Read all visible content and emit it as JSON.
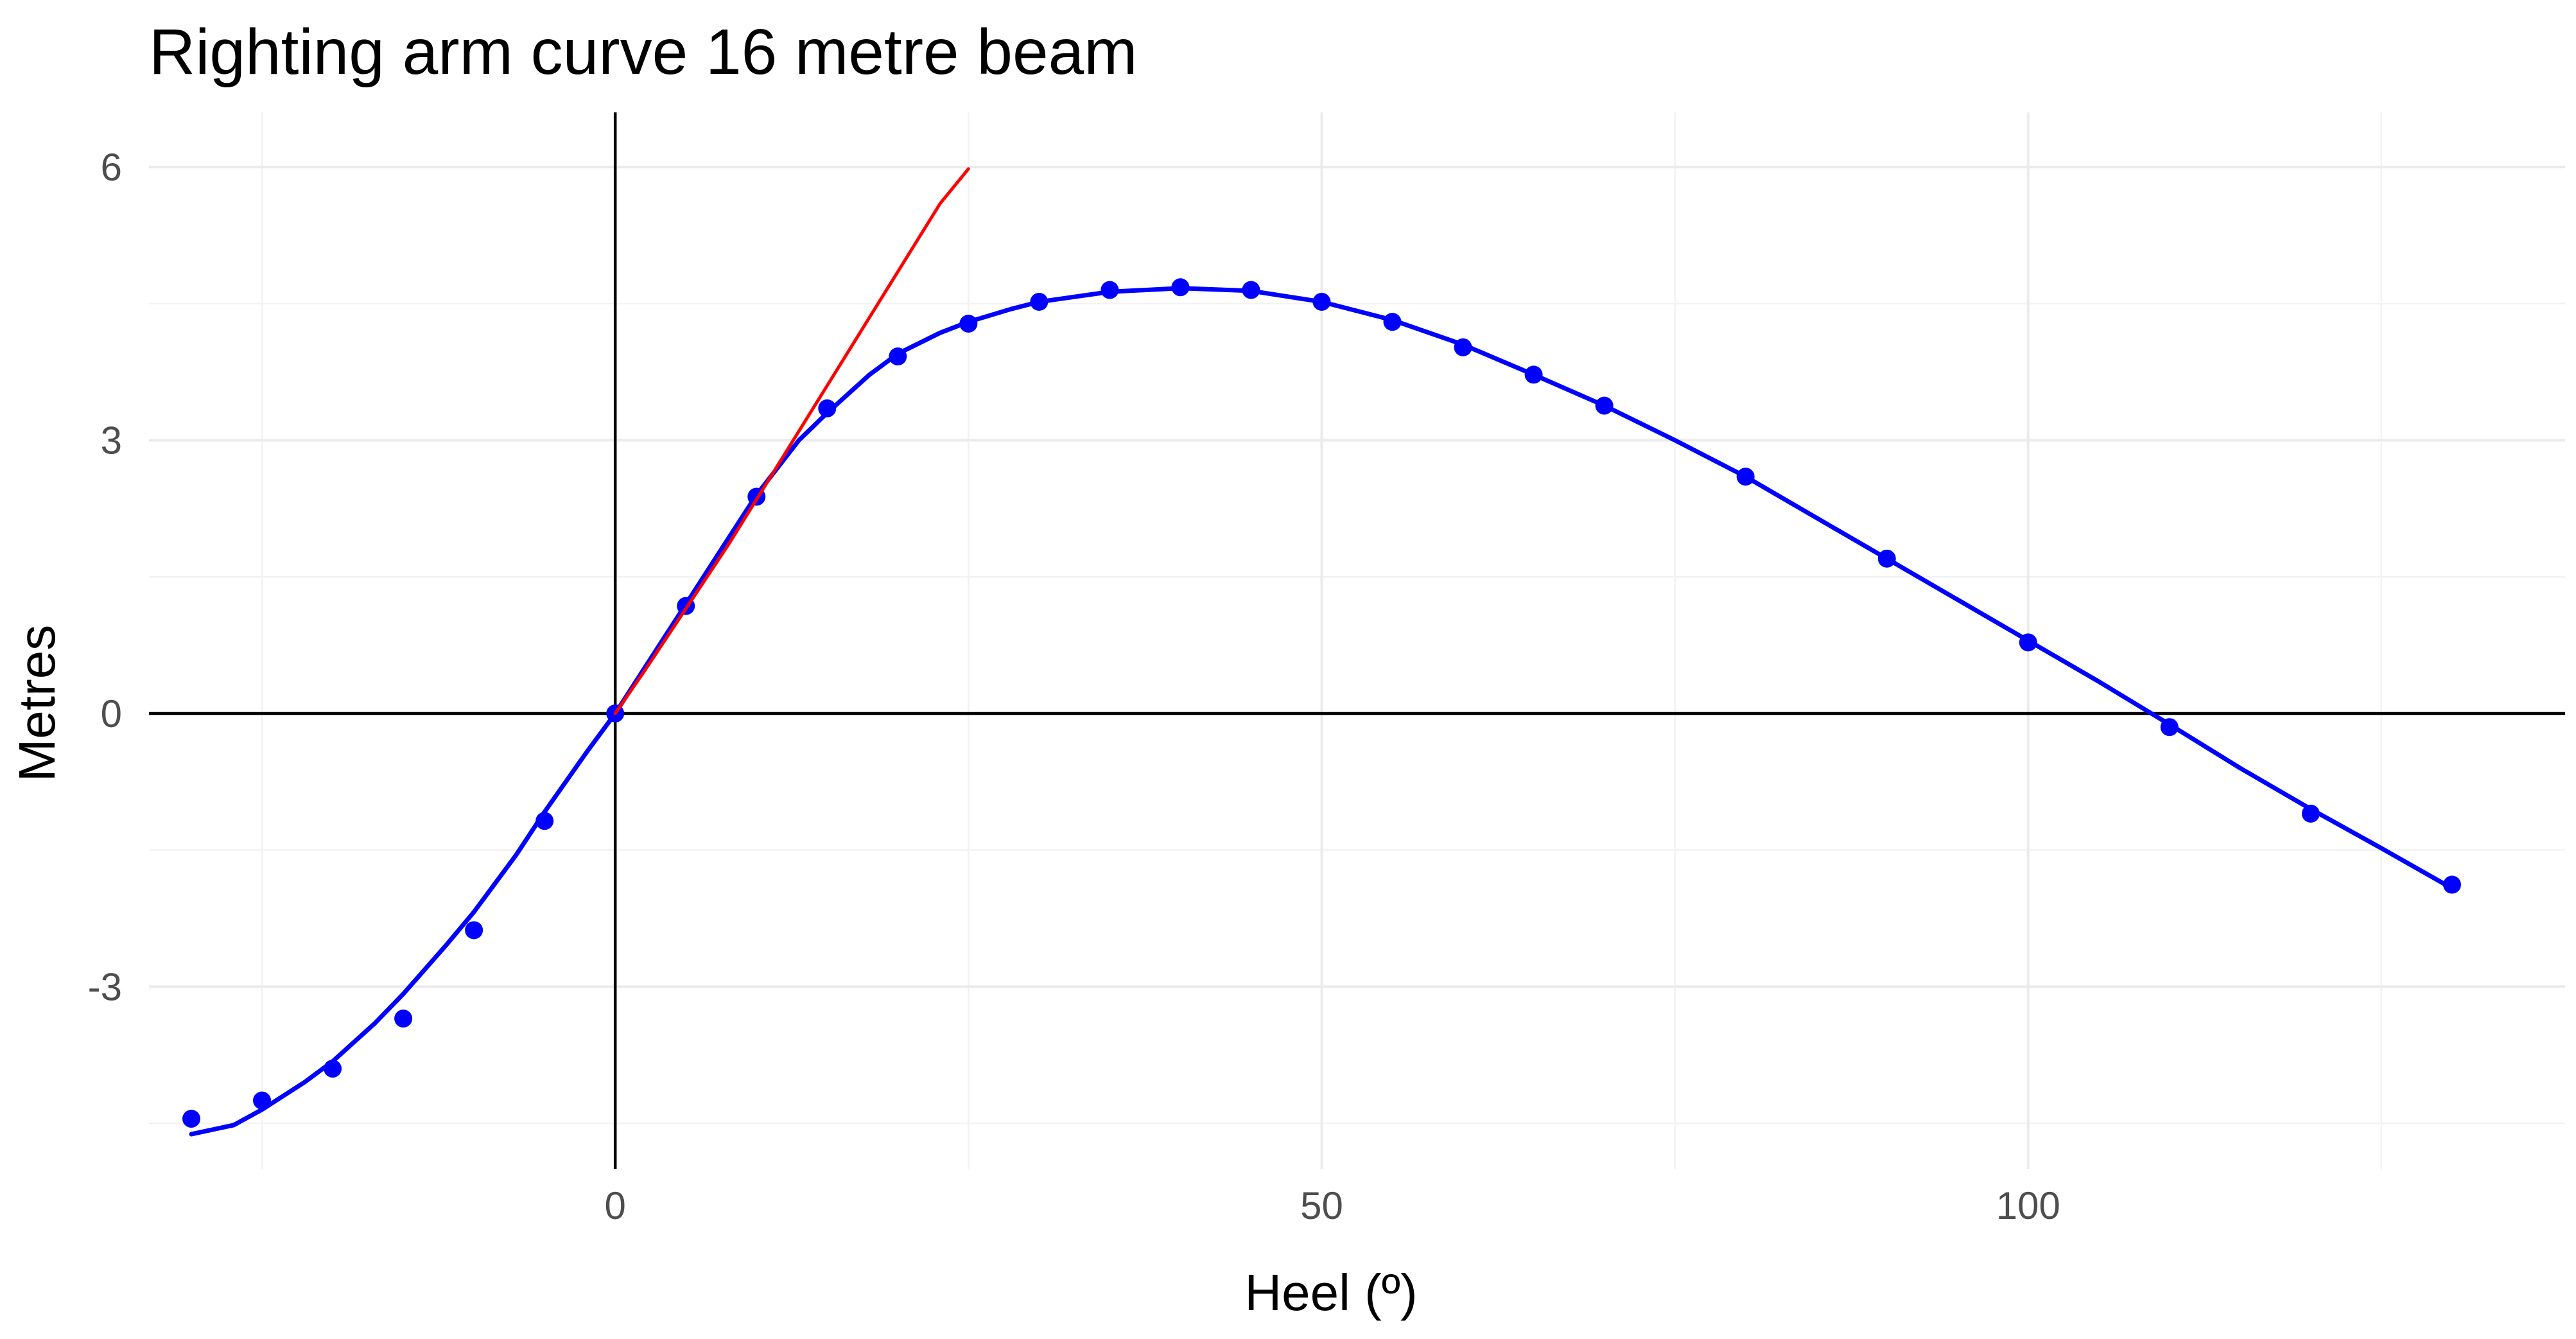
{
  "chart_data": {
    "type": "scatter",
    "title": "Righting arm curve 16 metre beam",
    "xlabel": "Heel (º)",
    "ylabel": "Metres",
    "xlim": [
      -33,
      138
    ],
    "ylim": [
      -5.0,
      6.6
    ],
    "x_ticks": [
      0,
      50,
      100
    ],
    "x_tick_labels": [
      "0",
      "50",
      "100"
    ],
    "y_ticks": [
      -3,
      0,
      3,
      6
    ],
    "y_tick_labels": [
      "-3",
      "0",
      "3",
      "6"
    ],
    "grid": true,
    "reference_lines": {
      "x": 0,
      "y": 0
    },
    "series": [
      {
        "kind": "points",
        "color": "#0000ff",
        "x": [
          -30,
          -25,
          -20,
          -15,
          -10,
          -5,
          0,
          5,
          10,
          15,
          20,
          25,
          30,
          35,
          40,
          45,
          50,
          55,
          60,
          65,
          70,
          80,
          90,
          100,
          110,
          120,
          130
        ],
        "y": [
          -4.45,
          -4.25,
          -3.9,
          -3.35,
          -2.38,
          -1.18,
          0.0,
          1.18,
          2.38,
          3.35,
          3.92,
          4.28,
          4.52,
          4.65,
          4.68,
          4.65,
          4.52,
          4.3,
          4.02,
          3.72,
          3.38,
          2.6,
          1.7,
          0.78,
          -0.15,
          -1.1,
          -1.88
        ]
      },
      {
        "kind": "smooth_line",
        "color": "#0000ff",
        "x": [
          -30,
          -27,
          -25,
          -22,
          -20,
          -17,
          -15,
          -12,
          -10,
          -7,
          -5,
          -2,
          0,
          3,
          5,
          8,
          10,
          13,
          15,
          18,
          20,
          23,
          25,
          28,
          30,
          35,
          40,
          45,
          50,
          55,
          60,
          65,
          70,
          75,
          80,
          85,
          90,
          95,
          100,
          105,
          110,
          115,
          120,
          125,
          130
        ],
        "y": [
          -4.62,
          -4.52,
          -4.35,
          -4.05,
          -3.82,
          -3.4,
          -3.08,
          -2.55,
          -2.18,
          -1.55,
          -1.08,
          -0.42,
          0.0,
          0.72,
          1.2,
          1.92,
          2.4,
          3.0,
          3.3,
          3.72,
          3.95,
          4.18,
          4.3,
          4.44,
          4.52,
          4.63,
          4.67,
          4.64,
          4.52,
          4.32,
          4.05,
          3.72,
          3.38,
          3.0,
          2.6,
          2.15,
          1.7,
          1.25,
          0.8,
          0.35,
          -0.12,
          -0.6,
          -1.05,
          -1.48,
          -1.92
        ]
      },
      {
        "kind": "line",
        "color": "#ff0000",
        "x": [
          0,
          2,
          5,
          8,
          10,
          13,
          15,
          17,
          19,
          21,
          23,
          25
        ],
        "y": [
          0.0,
          0.45,
          1.15,
          1.85,
          2.35,
          3.1,
          3.6,
          4.1,
          4.6,
          5.1,
          5.6,
          5.98
        ]
      }
    ]
  }
}
